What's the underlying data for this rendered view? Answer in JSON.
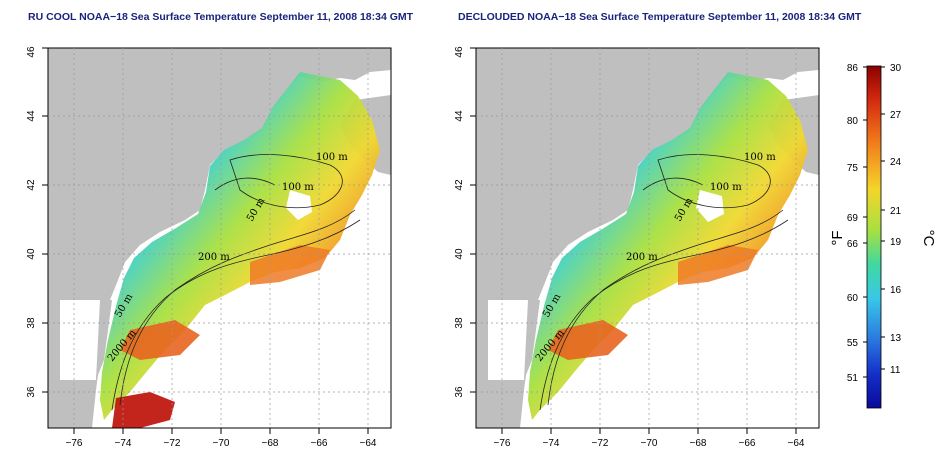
{
  "titles": {
    "left": "RU COOL NOAA−18 Sea Surface Temperature September 11, 2008 18:34 GMT",
    "right": "DECLOUDED NOAA−18 Sea Surface Temperature September 11, 2008 18:34 GMT"
  },
  "axes": {
    "lon_ticks": [
      "−76",
      "−74",
      "−72",
      "−70",
      "−68",
      "−66",
      "−64"
    ],
    "lat_ticks": [
      "36",
      "38",
      "40",
      "42",
      "44",
      "46"
    ]
  },
  "contours": {
    "labels": [
      "100 m",
      "100 m",
      "50 m",
      "200 m",
      "50 m",
      "2000 m"
    ]
  },
  "colorbar": {
    "fahrenheit_label": "°F",
    "celsius_label": "°C",
    "fahrenheit_ticks": [
      "86",
      "80",
      "75",
      "69",
      "66",
      "60",
      "55",
      "51"
    ],
    "celsius_ticks": [
      "30",
      "27",
      "24",
      "21",
      "19",
      "16",
      "13",
      "11"
    ],
    "range_c": [
      9,
      30
    ]
  },
  "colors": {
    "land": "#bfbfbf",
    "title": "#1a237e",
    "cold": "#1530c0",
    "warm": "#c81e10"
  }
}
